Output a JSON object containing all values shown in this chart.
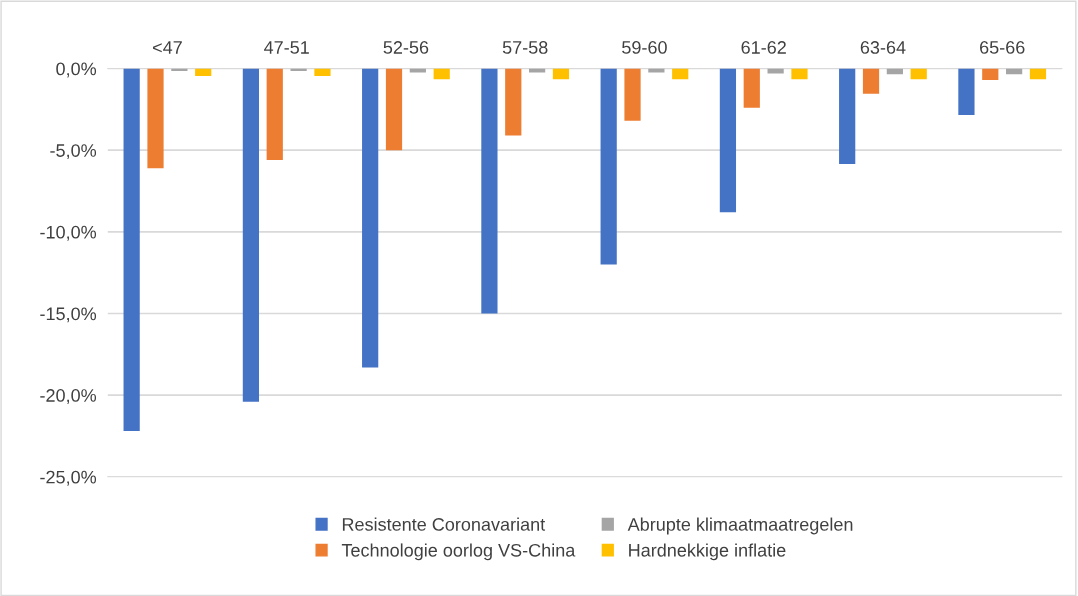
{
  "chart_data": {
    "type": "bar",
    "categories": [
      "<47",
      "47-51",
      "52-56",
      "57-58",
      "59-60",
      "61-62",
      "63-64",
      "65-66"
    ],
    "series": [
      {
        "name": "Resistente Coronavariant",
        "color": "#4472c4",
        "values": [
          -22.2,
          -20.4,
          -18.3,
          -15.0,
          -12.0,
          -8.8,
          -5.85,
          -2.85
        ]
      },
      {
        "name": "Technologie oorlog VS-China",
        "color": "#ed7d31",
        "values": [
          -6.1,
          -5.6,
          -5.0,
          -4.1,
          -3.2,
          -2.4,
          -1.55,
          -0.7
        ]
      },
      {
        "name": "Abrupte klimaatmaatregelen",
        "color": "#a5a5a5",
        "values": [
          -0.15,
          -0.15,
          -0.25,
          -0.25,
          -0.25,
          -0.3,
          -0.35,
          -0.35
        ]
      },
      {
        "name": "Hardnekkige inflatie",
        "color": "#ffc000",
        "values": [
          -0.45,
          -0.45,
          -0.65,
          -0.65,
          -0.65,
          -0.65,
          -0.65,
          -0.65
        ]
      }
    ],
    "ylim": [
      -25,
      0
    ],
    "yticks": [
      {
        "value": 0,
        "label": "0,0%"
      },
      {
        "value": -5,
        "label": "-5,0%"
      },
      {
        "value": -10,
        "label": "-10,0%"
      },
      {
        "value": -15,
        "label": "-15,0%"
      },
      {
        "value": -20,
        "label": "-20,0%"
      },
      {
        "value": -25,
        "label": "-25,0%"
      }
    ],
    "grid": "y",
    "legend": "bottom"
  }
}
